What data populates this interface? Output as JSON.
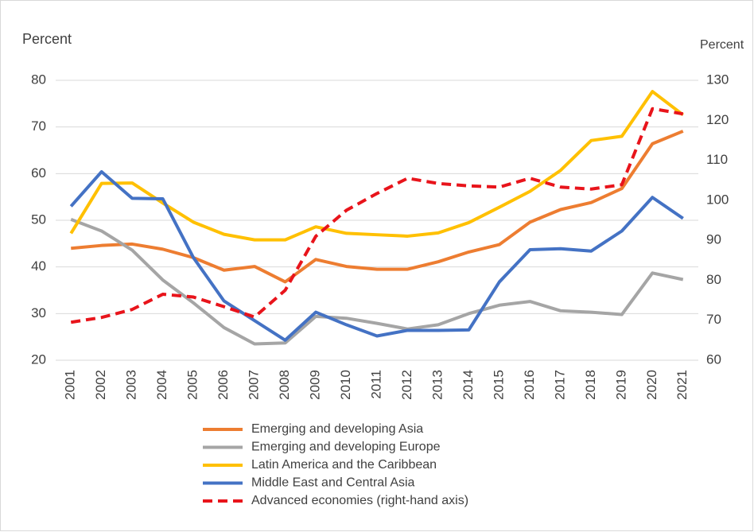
{
  "chart_data": {
    "type": "line",
    "ylabel": "Percent",
    "y2label": "Percent",
    "categories": [
      "2001",
      "2002",
      "2003",
      "2004",
      "2005",
      "2006",
      "2007",
      "2008",
      "2009",
      "2010",
      "2011",
      "2012",
      "2013",
      "2014",
      "2015",
      "2016",
      "2017",
      "2018",
      "2019",
      "2020",
      "2021"
    ],
    "series": [
      {
        "name": "Emerging and developing Asia",
        "color": "#ed7d31",
        "values": [
          44,
          44.6,
          44.9,
          43.8,
          42,
          39.3,
          40.1,
          36.8,
          41.6,
          40.1,
          39.5,
          39.5,
          41.1,
          43.2,
          44.8,
          49.6,
          52.3,
          53.8,
          56.8,
          66.4,
          69.1
        ]
      },
      {
        "name": "Emerging and developing Europe",
        "color": "#a5a5a5",
        "values": [
          50.2,
          47.7,
          43.6,
          37.2,
          32.3,
          27,
          23.5,
          23.7,
          29.4,
          29,
          27.9,
          26.7,
          27.6,
          30,
          31.8,
          32.6,
          30.6,
          30.3,
          29.8,
          38.7,
          37.3
        ]
      },
      {
        "name": "Latin America and the Caribbean",
        "color": "#ffc000",
        "values": [
          47.2,
          57.9,
          58,
          53.7,
          49.6,
          47,
          45.8,
          45.8,
          48.6,
          47.2,
          46.9,
          46.6,
          47.3,
          49.5,
          52.8,
          56.2,
          60.7,
          67.1,
          68,
          77.6,
          72.6
        ]
      },
      {
        "name": "Middle East and Central Asia",
        "color": "#4472c4",
        "values": [
          53,
          60.4,
          54.7,
          54.6,
          42,
          32.7,
          28.5,
          24.3,
          30.3,
          27.6,
          25.2,
          26.4,
          26.4,
          26.5,
          36.8,
          43.7,
          43.9,
          43.4,
          47.7,
          54.9,
          50.4
        ]
      },
      {
        "name": "Advanced economies (right-hand axis)",
        "color": "#e8141b",
        "dashed": true,
        "axis": "y2",
        "values": [
          69.5,
          70.7,
          72.7,
          76.5,
          75.8,
          73.4,
          70.8,
          77.5,
          91,
          97.5,
          101.7,
          105.5,
          104.2,
          103.6,
          103.3,
          105.5,
          103.3,
          102.8,
          103.9,
          122.9,
          121.6
        ]
      }
    ],
    "ylim": [
      20,
      80
    ],
    "yticks": [
      20,
      30,
      40,
      50,
      60,
      70,
      80
    ],
    "y2lim": [
      60,
      130
    ],
    "y2ticks": [
      60,
      70,
      80,
      90,
      100,
      110,
      120,
      130
    ],
    "grid": true,
    "legend": "bottom"
  }
}
